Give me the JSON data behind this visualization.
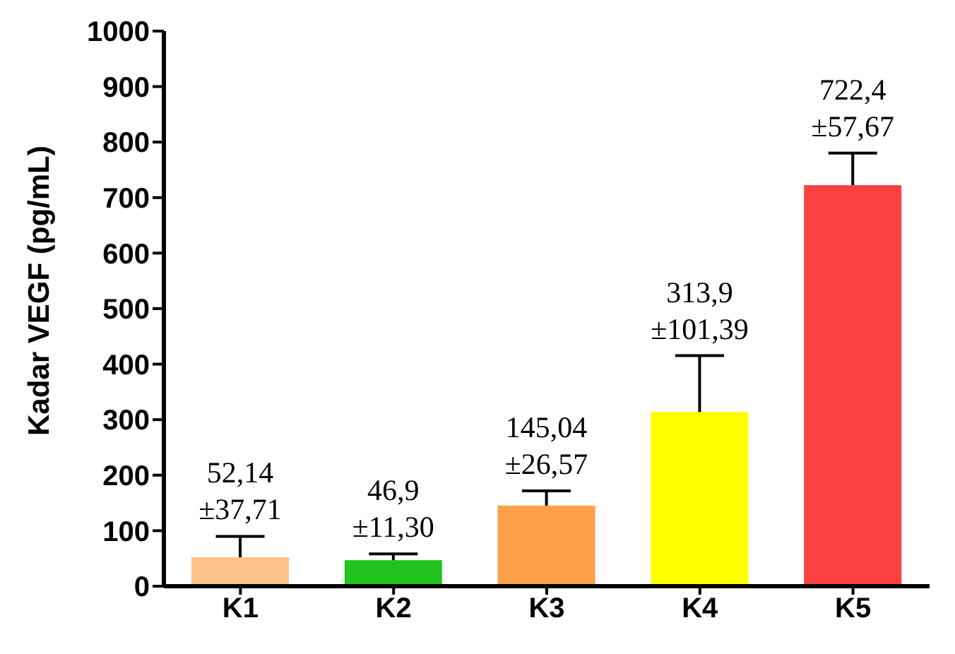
{
  "chart_data": {
    "type": "bar",
    "ylabel": "Kadar VEGF (pg/mL)",
    "categories": [
      "K1",
      "K2",
      "K3",
      "K4",
      "K5"
    ],
    "values": [
      52.14,
      46.9,
      145.04,
      313.9,
      722.4
    ],
    "colors": [
      "#fcc28a",
      "#22c31c",
      "#fd9f47",
      "#ffff00",
      "#f94141"
    ],
    "errors": [
      [
        52.14,
        89.85
      ],
      [
        46.9,
        58.2
      ],
      [
        145.04,
        171.61
      ],
      [
        313.9,
        415.29
      ],
      [
        722.4,
        780.07
      ]
    ],
    "value_labels": [
      "52,14 ±37,71",
      "46,9 ±11,30",
      "145,04 ±26,57",
      "313,9 ±101,39",
      "722,4 ±57,67"
    ],
    "ylim": [
      0,
      1000
    ],
    "yticks": [
      0,
      100,
      200,
      300,
      400,
      500,
      600,
      700,
      800,
      900,
      1000
    ],
    "grid": false,
    "legend": false
  }
}
